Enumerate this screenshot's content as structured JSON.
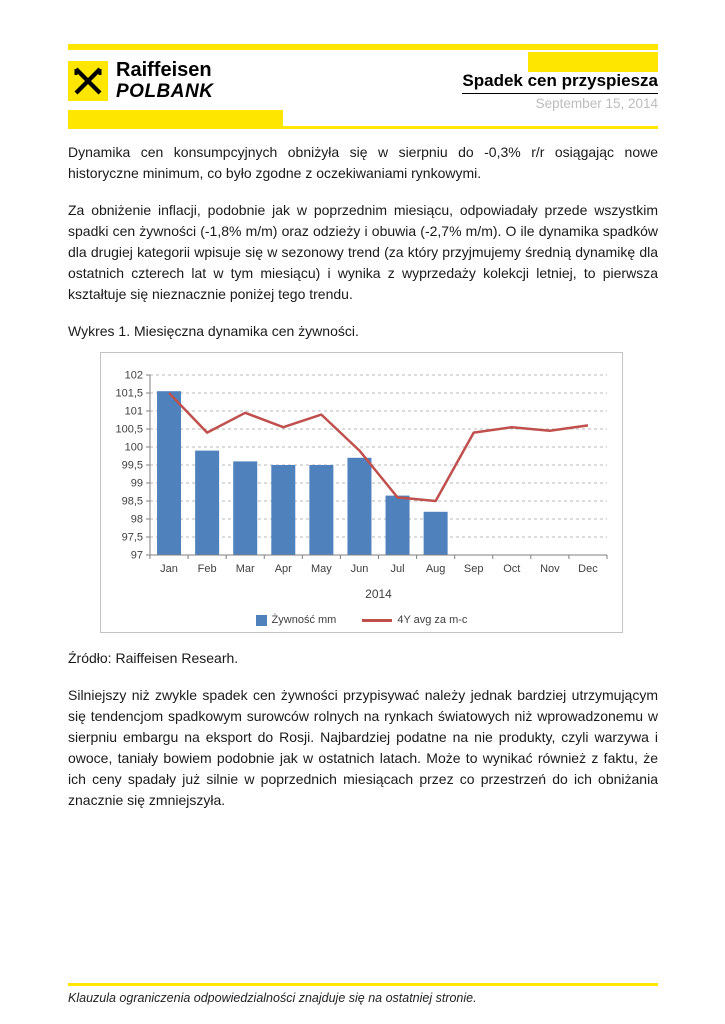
{
  "page": {
    "header": {
      "brand_name": "Raiffeisen",
      "brand_sub": "POLBANK",
      "title": "Spadek cen przyspiesza",
      "date": "September 15, 2014"
    },
    "paragraphs": {
      "p1": "Dynamika cen konsumpcyjnych obniżyła się w sierpniu do -0,3% r/r osiągając nowe historyczne minimum, co było zgodne z oczekiwaniami rynkowymi.",
      "p2": "Za obniżenie inflacji, podobnie jak w poprzednim miesiącu, odpowiadały przede wszystkim spadki cen żywności (-1,8% m/m) oraz odzieży i obuwia (-2,7% m/m). O ile dynamika spadków dla drugiej kategorii wpisuje się w sezonowy trend (za który przyjmujemy średnią dynamikę dla ostatnich czterech lat w tym miesiącu) i wynika z wyprzedaży kolekcji letniej, to pierwsza kształtuje się nieznacznie poniżej tego trendu.",
      "chart_caption": "Wykres 1. Miesięczna dynamika cen żywności.",
      "source": "Źródło: Raiffeisen Researh.",
      "p3": "Silniejszy niż zwykle spadek cen żywności przypisywać należy jednak bardziej utrzymującym się tendencjom spadkowym surowców rolnych na rynkach światowych niż wprowadzonemu w sierpniu embargu na eksport do Rosji. Najbardziej podatne na nie produkty, czyli warzywa i owoce, taniały bowiem podobnie jak w ostatnich latach. Może to wynikać również z faktu, że ich ceny spadały już silnie w poprzednich miesiącach przez co przestrzeń do ich obniżania znacznie się zmniejszyła."
    },
    "footer": {
      "disclaimer": "Klauzula ograniczenia odpowiedzialności znajduje się na ostatniej stronie."
    }
  },
  "chart_data": {
    "type": "bar+line",
    "title": "Wykres 1. Miesięczna dynamika cen żywności.",
    "categories": [
      "Jan",
      "Feb",
      "Mar",
      "Apr",
      "May",
      "Jun",
      "Jul",
      "Aug",
      "Sep",
      "Oct",
      "Nov",
      "Dec"
    ],
    "series": [
      {
        "name": "Żywność mm",
        "type": "bar",
        "color": "#4f81bd",
        "values": [
          101.55,
          99.9,
          99.6,
          99.5,
          99.5,
          99.7,
          98.65,
          98.2,
          null,
          null,
          null,
          null
        ]
      },
      {
        "name": "4Y avg za m-c",
        "type": "line",
        "color": "#c0504d",
        "values": [
          101.5,
          100.4,
          100.95,
          100.55,
          100.9,
          99.9,
          98.6,
          98.5,
          100.4,
          100.55,
          100.45,
          100.6
        ]
      }
    ],
    "xlabel": "2014",
    "ylabel": "",
    "ylim": [
      97,
      102
    ],
    "ytick_step": 0.5,
    "ytick_labels": [
      "102",
      "101,5",
      "101",
      "100,5",
      "100",
      "99,5",
      "99",
      "98,5",
      "98",
      "97,5",
      "97"
    ],
    "grid": true,
    "legend_position": "bottom"
  },
  "colors": {
    "accent_yellow": "#ffe600",
    "bar_blue": "#4f81bd",
    "line_red": "#c0504d",
    "date_gray": "#bcbcbc"
  }
}
